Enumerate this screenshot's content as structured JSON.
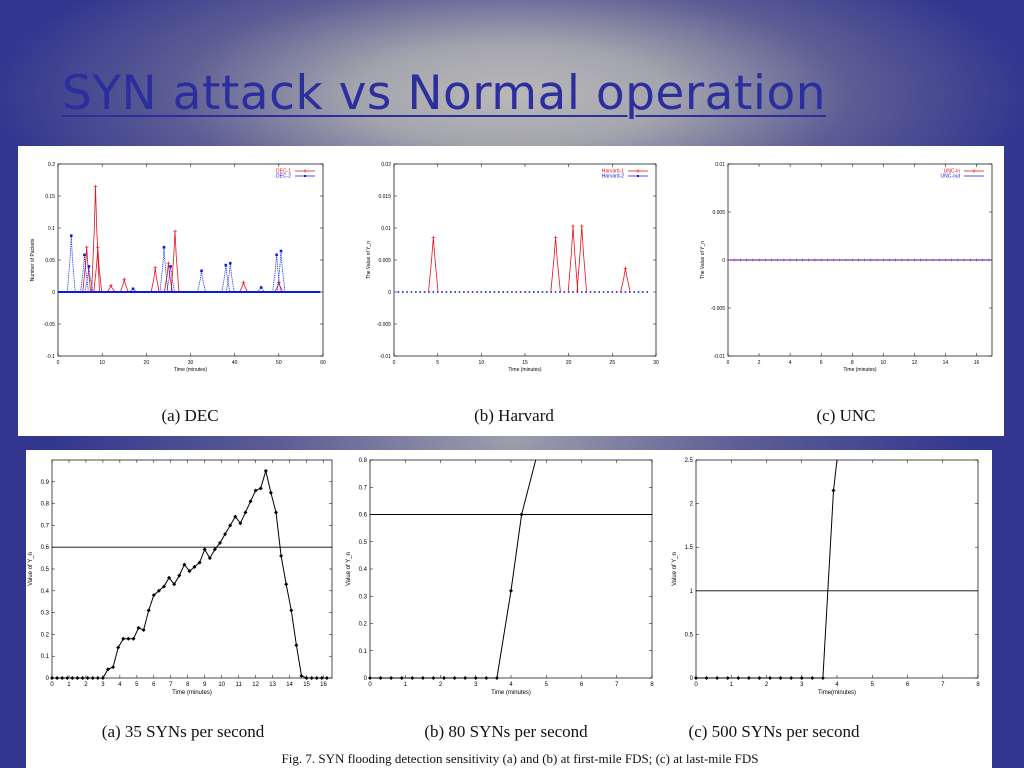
{
  "slide": {
    "title": "SYN attack vs Normal operation"
  },
  "captions": {
    "top": [
      "(a) DEC",
      "(b) Harvard",
      "(c) UNC"
    ],
    "bottom": [
      "(a) 35 SYNs per second",
      "(b) 80 SYNs per second",
      "(c) 500 SYNs per second"
    ],
    "figure": "Fig. 7.   SYN flooding detection sensitivity (a) and (b) at first-mile FDS; (c) at last-mile FDS"
  },
  "colors": {
    "red": "#e8101a",
    "blue": "#0a1ae8",
    "black": "#000000"
  },
  "chart_data": [
    {
      "type": "line",
      "xlabel": "Time (minutes)",
      "ylabel": "Number of Packets",
      "xlim": [
        0,
        60
      ],
      "ylim": [
        -0.1,
        0.2
      ],
      "xticks": [
        0,
        10,
        20,
        30,
        40,
        50,
        60
      ],
      "yticks": [
        -0.1,
        -0.05,
        0,
        0.05,
        0.1,
        0.15,
        0.2
      ],
      "legend": "top-right",
      "series": [
        {
          "name": "DEC-1",
          "color": "red",
          "style": "solid",
          "spikes": [
            [
              6.5,
              0.07
            ],
            [
              8.5,
              0.165
            ],
            [
              9,
              0.07
            ],
            [
              12,
              0.01
            ],
            [
              15,
              0.02
            ],
            [
              22,
              0.038
            ],
            [
              25,
              0.045
            ],
            [
              26.5,
              0.095
            ],
            [
              42,
              0.015
            ],
            [
              50,
              0.015
            ]
          ]
        },
        {
          "name": "DEC-2",
          "color": "blue",
          "style": "dotted",
          "spikes": [
            [
              3,
              0.088
            ],
            [
              6,
              0.058
            ],
            [
              7,
              0.04
            ],
            [
              17,
              0.005
            ],
            [
              24,
              0.07
            ],
            [
              25.5,
              0.04
            ],
            [
              32.5,
              0.033
            ],
            [
              38,
              0.042
            ],
            [
              39,
              0.045
            ],
            [
              46,
              0.007
            ],
            [
              49.5,
              0.058
            ],
            [
              50.5,
              0.064
            ]
          ]
        }
      ]
    },
    {
      "type": "line",
      "xlabel": "Time (minutes)",
      "ylabel": "The Value of Y_n",
      "xlim": [
        0,
        30
      ],
      "ylim": [
        -0.01,
        0.02
      ],
      "xticks": [
        0,
        5,
        10,
        15,
        20,
        25,
        30
      ],
      "yticks": [
        -0.01,
        -0.005,
        0,
        0.005,
        0.01,
        0.015,
        0.02
      ],
      "legend": "top-right",
      "series": [
        {
          "name": "Harvard-1",
          "color": "red",
          "style": "solid",
          "spikes": [
            [
              4.5,
              0.0085
            ],
            [
              18.5,
              0.0085
            ],
            [
              20.5,
              0.0103
            ],
            [
              21.5,
              0.0103
            ],
            [
              26.5,
              0.0037
            ]
          ]
        },
        {
          "name": "Harvard-2",
          "color": "blue",
          "style": "dotted",
          "spikes": []
        }
      ]
    },
    {
      "type": "line",
      "xlabel": "Time (minutes)",
      "ylabel": "The Value of Y_n",
      "xlim": [
        0,
        17
      ],
      "ylim": [
        -0.01,
        0.01
      ],
      "xticks": [
        0,
        2,
        4,
        6,
        8,
        10,
        12,
        14,
        16
      ],
      "yticks": [
        -0.01,
        -0.005,
        0,
        0.005,
        0.01
      ],
      "legend": "top-right",
      "series": [
        {
          "name": "UNC-in",
          "color": "red",
          "style": "points"
        },
        {
          "name": "UNC-out",
          "color": "blue",
          "style": "solid"
        }
      ]
    },
    {
      "type": "line",
      "xlabel": "Time (minutes)",
      "ylabel": "Value of Y_n",
      "xlim": [
        0,
        16.5
      ],
      "ylim": [
        0,
        1
      ],
      "xticks": [
        0,
        1,
        2,
        3,
        4,
        5,
        6,
        7,
        8,
        9,
        10,
        11,
        12,
        13,
        14,
        15,
        16
      ],
      "yticks": [
        0,
        0.1,
        0.2,
        0.3,
        0.4,
        0.5,
        0.6,
        0.7,
        0.8,
        0.9
      ],
      "threshold": 0.6,
      "series": [
        {
          "name": "",
          "color": "black",
          "x": [
            0,
            0.3,
            0.6,
            0.9,
            1.2,
            1.5,
            1.8,
            2.1,
            2.4,
            2.7,
            3.0,
            3.3,
            3.6,
            3.9,
            4.2,
            4.5,
            4.8,
            5.1,
            5.4,
            5.7,
            6.0,
            6.3,
            6.6,
            6.9,
            7.2,
            7.5,
            7.8,
            8.1,
            8.4,
            8.7,
            9.0,
            9.3,
            9.6,
            9.9,
            10.2,
            10.5,
            10.8,
            11.1,
            11.4,
            11.7,
            12.0,
            12.3,
            12.6,
            12.9,
            13.2,
            13.5,
            13.8,
            14.1,
            14.4,
            14.7,
            15.0,
            15.3,
            15.6,
            15.9,
            16.2
          ],
          "y": [
            0,
            0,
            0,
            0,
            0,
            0,
            0,
            0,
            0,
            0,
            0,
            0.04,
            0.05,
            0.14,
            0.18,
            0.18,
            0.18,
            0.23,
            0.22,
            0.31,
            0.38,
            0.4,
            0.42,
            0.46,
            0.43,
            0.47,
            0.52,
            0.49,
            0.51,
            0.53,
            0.59,
            0.55,
            0.59,
            0.62,
            0.66,
            0.7,
            0.74,
            0.71,
            0.76,
            0.81,
            0.86,
            0.87,
            0.95,
            0.85,
            0.76,
            0.56,
            0.43,
            0.31,
            0.15,
            0.01,
            0,
            0,
            0,
            0,
            0
          ]
        }
      ]
    },
    {
      "type": "line",
      "xlabel": "Time (minutes)",
      "ylabel": "Value of Y_n",
      "xlim": [
        0,
        8
      ],
      "ylim": [
        0,
        0.8
      ],
      "xticks": [
        0,
        1,
        2,
        3,
        4,
        5,
        6,
        7,
        8
      ],
      "yticks": [
        0,
        0.1,
        0.2,
        0.3,
        0.4,
        0.5,
        0.6,
        0.7,
        0.8
      ],
      "threshold": 0.6,
      "series": [
        {
          "name": "",
          "color": "black",
          "x": [
            0,
            0.3,
            0.6,
            0.9,
            1.2,
            1.5,
            1.8,
            2.1,
            2.4,
            2.7,
            3.0,
            3.3,
            3.6,
            4.0,
            4.3,
            4.7
          ],
          "y": [
            0,
            0,
            0,
            0,
            0,
            0,
            0,
            0,
            0,
            0,
            0,
            0,
            0,
            0.32,
            0.6,
            0.8
          ]
        }
      ]
    },
    {
      "type": "line",
      "xlabel": "Time(minutes)",
      "ylabel": "Value of Y_n",
      "xlim": [
        0,
        8
      ],
      "ylim": [
        0,
        2.5
      ],
      "xticks": [
        0,
        1,
        2,
        3,
        4,
        5,
        6,
        7,
        8
      ],
      "yticks": [
        0,
        0.5,
        1,
        1.5,
        2,
        2.5
      ],
      "threshold": 1,
      "series": [
        {
          "name": "",
          "color": "black",
          "x": [
            0,
            0.3,
            0.6,
            0.9,
            1.2,
            1.5,
            1.8,
            2.1,
            2.4,
            2.7,
            3.0,
            3.3,
            3.6,
            3.9,
            4.0
          ],
          "y": [
            0,
            0,
            0,
            0,
            0,
            0,
            0,
            0,
            0,
            0,
            0,
            0,
            0,
            2.15,
            2.5
          ]
        }
      ]
    }
  ]
}
